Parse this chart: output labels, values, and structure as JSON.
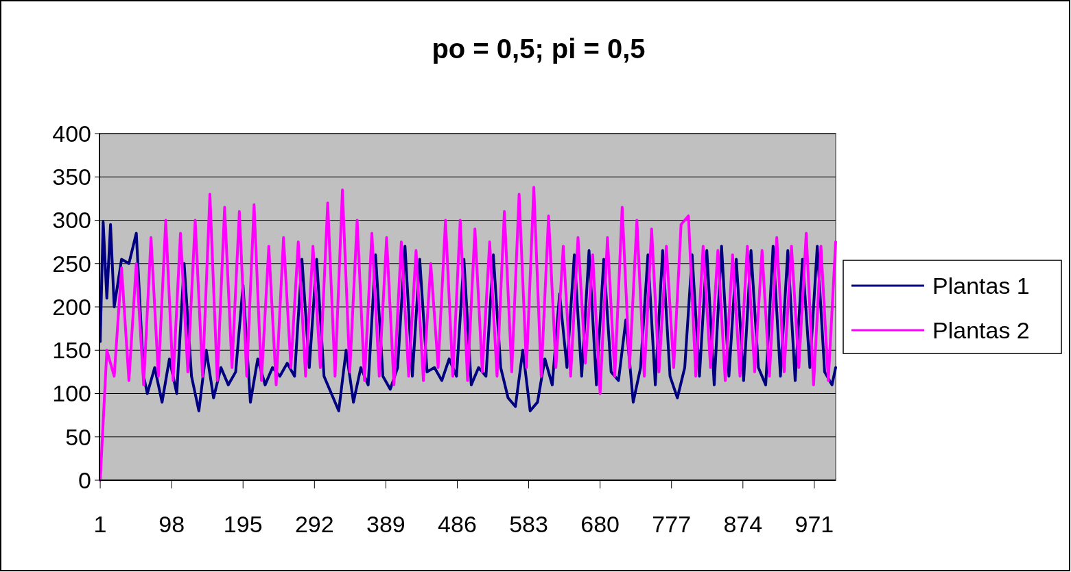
{
  "chart_data": {
    "type": "line",
    "title": "po = 0,5; pi = 0,5",
    "xlim": [
      0,
      1000
    ],
    "xticks": [
      1,
      98,
      195,
      292,
      389,
      486,
      583,
      680,
      777,
      874,
      971
    ],
    "ylim": [
      0,
      400
    ],
    "yticks": [
      0,
      50,
      100,
      150,
      200,
      250,
      300,
      350,
      400
    ],
    "grid": "y",
    "legend": "right",
    "line_style": "solid",
    "series": [
      {
        "name": "Plantas 1",
        "color": "#000080",
        "x": [
          1,
          5,
          10,
          15,
          20,
          30,
          40,
          50,
          60,
          65,
          75,
          85,
          95,
          105,
          115,
          125,
          135,
          145,
          155,
          165,
          175,
          185,
          195,
          205,
          215,
          225,
          235,
          245,
          255,
          265,
          275,
          285,
          295,
          305,
          315,
          325,
          335,
          345,
          355,
          365,
          375,
          385,
          395,
          405,
          415,
          425,
          435,
          445,
          455,
          465,
          475,
          485,
          495,
          505,
          515,
          525,
          535,
          545,
          555,
          565,
          575,
          585,
          595,
          605,
          615,
          625,
          635,
          645,
          655,
          665,
          675,
          685,
          695,
          705,
          715,
          725,
          735,
          745,
          755,
          765,
          775,
          785,
          795,
          805,
          815,
          825,
          835,
          845,
          855,
          865,
          875,
          885,
          895,
          905,
          915,
          925,
          935,
          945,
          955,
          965,
          975,
          985,
          995,
          1000
        ],
        "values": [
          160,
          298,
          210,
          295,
          200,
          255,
          250,
          285,
          120,
          100,
          130,
          90,
          140,
          100,
          250,
          120,
          80,
          150,
          95,
          130,
          110,
          125,
          225,
          90,
          140,
          110,
          130,
          120,
          135,
          120,
          255,
          130,
          255,
          120,
          100,
          80,
          150,
          90,
          130,
          110,
          260,
          120,
          105,
          130,
          270,
          120,
          255,
          125,
          130,
          115,
          140,
          120,
          255,
          110,
          130,
          120,
          260,
          130,
          95,
          85,
          150,
          80,
          90,
          140,
          110,
          215,
          130,
          260,
          120,
          265,
          110,
          255,
          125,
          115,
          185,
          90,
          130,
          260,
          110,
          265,
          120,
          95,
          130,
          260,
          120,
          265,
          110,
          270,
          120,
          255,
          115,
          265,
          130,
          110,
          270,
          120,
          265,
          115,
          255,
          130,
          270,
          125,
          110,
          130
        ]
      },
      {
        "name": "Plantas 2",
        "color": "#ff00ff",
        "x": [
          1,
          10,
          20,
          30,
          40,
          50,
          60,
          70,
          80,
          90,
          100,
          110,
          120,
          130,
          140,
          150,
          160,
          170,
          180,
          190,
          200,
          210,
          220,
          230,
          240,
          250,
          260,
          270,
          280,
          290,
          300,
          310,
          320,
          330,
          340,
          350,
          360,
          370,
          380,
          390,
          400,
          410,
          420,
          430,
          440,
          450,
          460,
          470,
          480,
          490,
          500,
          510,
          520,
          530,
          540,
          550,
          560,
          570,
          580,
          590,
          600,
          610,
          620,
          630,
          640,
          650,
          660,
          670,
          680,
          690,
          700,
          710,
          720,
          730,
          740,
          750,
          760,
          770,
          780,
          790,
          800,
          810,
          820,
          830,
          840,
          850,
          860,
          870,
          880,
          890,
          900,
          910,
          920,
          930,
          940,
          950,
          960,
          970,
          980,
          990,
          1000
        ],
        "values": [
          0,
          150,
          120,
          245,
          115,
          250,
          110,
          280,
          120,
          300,
          115,
          285,
          125,
          300,
          120,
          330,
          115,
          315,
          130,
          310,
          120,
          318,
          115,
          270,
          110,
          280,
          130,
          275,
          120,
          270,
          130,
          320,
          120,
          335,
          125,
          300,
          115,
          285,
          120,
          280,
          110,
          275,
          120,
          265,
          115,
          250,
          130,
          300,
          120,
          300,
          115,
          290,
          125,
          275,
          120,
          310,
          125,
          330,
          130,
          338,
          120,
          305,
          130,
          270,
          120,
          280,
          135,
          260,
          100,
          280,
          120,
          315,
          130,
          300,
          120,
          290,
          125,
          270,
          130,
          295,
          305,
          120,
          270,
          130,
          265,
          115,
          260,
          120,
          270,
          125,
          265,
          120,
          280,
          125,
          270,
          130,
          285,
          110,
          270,
          115,
          275
        ]
      }
    ]
  }
}
